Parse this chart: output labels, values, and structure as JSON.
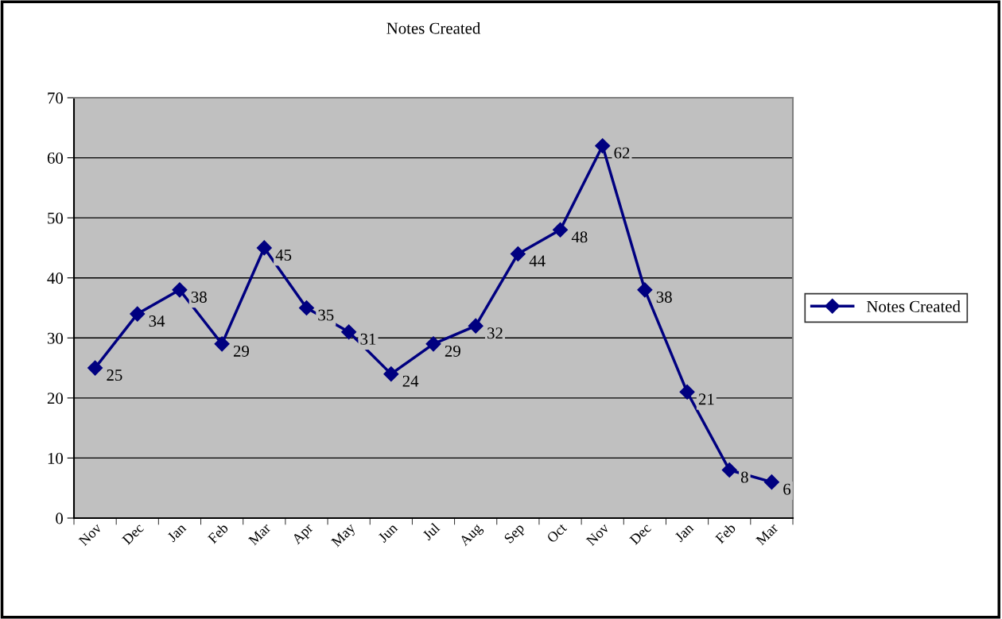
{
  "chart_data": {
    "type": "line",
    "title": "Notes Created",
    "categories": [
      "Nov",
      "Dec",
      "Jan",
      "Feb",
      "Mar",
      "Apr",
      "May",
      "Jun",
      "Jul",
      "Aug",
      "Sep",
      "Oct",
      "Nov",
      "Dec",
      "Jan",
      "Feb",
      "Mar"
    ],
    "series": [
      {
        "name": "Notes Created",
        "color": "#000080",
        "values": [
          25,
          34,
          38,
          29,
          45,
          35,
          31,
          24,
          29,
          32,
          44,
          48,
          62,
          38,
          21,
          8,
          6
        ]
      }
    ],
    "ylim": [
      0,
      70
    ],
    "yticks": [
      0,
      10,
      20,
      30,
      40,
      50,
      60,
      70
    ],
    "grid": "y",
    "legend": "right",
    "marker": "diamond",
    "line_style": "solid",
    "data_labels": true
  }
}
